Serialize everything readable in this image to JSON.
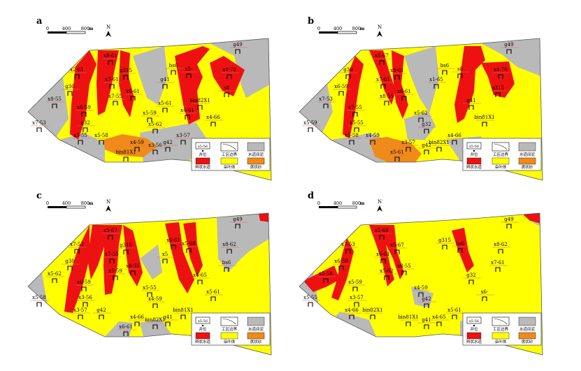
{
  "panels": [
    {
      "id": "a",
      "label": "a",
      "wells": [
        "g49",
        "x4-70",
        "bs6",
        "g315",
        "x8-61",
        "x5-",
        "s8",
        "x7-61",
        "x6-61",
        "x2-61",
        "g30",
        "x6-59",
        "x7-55",
        "x8-55",
        "x7-53",
        "x5-59",
        "x5-62",
        "g32",
        "x5-55",
        "x5-58",
        "x4-59",
        "x3-56",
        "x3-57",
        "g42",
        "x4-66",
        "bin82X1",
        "bin81X1",
        "g41",
        "x5-61",
        "x4-61"
      ]
    },
    {
      "id": "b",
      "label": "b",
      "wells": [
        "g49",
        "x4-70",
        "bs6",
        "x8-61",
        "x5-67",
        "s8",
        "g315",
        "x7-61",
        "x6-61",
        "g30",
        "x6-59",
        "x7-55",
        "x8-55",
        "x7-53",
        "x5-59",
        "x5-62",
        "g32",
        "x5-55",
        "x5-58",
        "x4-59",
        "x3-57",
        "g42",
        "x4-66",
        "bin82X1",
        "bin81X1",
        "g41",
        "x5-61",
        "x1-65"
      ]
    },
    {
      "id": "c",
      "label": "c",
      "wells": [
        "g49",
        "x8-62",
        "x6-61",
        "g315",
        "x5-67",
        "x5-68",
        "bs6",
        "x7-55",
        "x8-55",
        "x7-53",
        "g30",
        "x6-59",
        "x5-59",
        "x5-62",
        "x5-58",
        "x5-55",
        "x4-59",
        "x3-56",
        "x3-57",
        "g42",
        "x4-66",
        "bin82X1",
        "bin81X1",
        "g41",
        "x5-61",
        "x4-65",
        "x6-61",
        "x5"
      ]
    },
    {
      "id": "d",
      "label": "d",
      "wells": [
        "g49",
        "x8-62",
        "g315",
        "x5-67",
        "x5-68",
        "bs6",
        "x7-61",
        "x6-61",
        "x8-55",
        "x7-53",
        "x6-59",
        "x5-59",
        "x5-62",
        "x5-58",
        "x5-55",
        "x4-59",
        "g42",
        "x3-57",
        "x4-66",
        "bin82X1",
        "bin81X1",
        "g41",
        "x5-61",
        "x4-65",
        "x6-",
        "g32"
      ]
    }
  ],
  "scale_bar": {
    "ticks": [
      "0",
      "400",
      "800"
    ],
    "unit": "m"
  },
  "north_arrow": {
    "label": "N"
  },
  "legend": {
    "items": [
      {
        "key": "well",
        "label": "井位",
        "sample": "x5-56"
      },
      {
        "key": "boundary",
        "label": "工区边界"
      },
      {
        "key": "inter_channel",
        "label": "水道间泥",
        "color": "#b9b9b9"
      },
      {
        "key": "braided_channel",
        "label": "辫状水道",
        "color": "#ee1111"
      },
      {
        "key": "lobe",
        "label": "朵叶体",
        "color": "#ffff00"
      },
      {
        "key": "sheet_sand",
        "label": "席状砂",
        "color": "#f08a1a"
      }
    ]
  },
  "colors": {
    "red": "#ee1111",
    "yellow": "#ffff00",
    "gray": "#b9b9b9",
    "orange": "#f08a1a"
  }
}
